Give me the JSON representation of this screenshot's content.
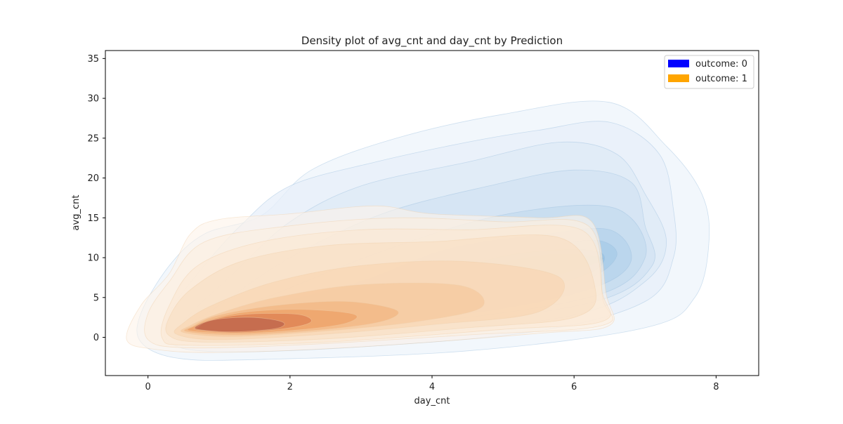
{
  "chart_data": {
    "type": "kde_contour",
    "title": "Density plot of avg_cnt and day_cnt by Prediction",
    "xlabel": "day_cnt",
    "ylabel": "avg_cnt",
    "xlim": [
      -0.6,
      8.6
    ],
    "ylim": [
      -4.8,
      36
    ],
    "xticks": [
      0,
      2,
      4,
      6,
      8
    ],
    "yticks": [
      0,
      5,
      10,
      15,
      20,
      25,
      30,
      35
    ],
    "grid": false,
    "legend_position": "top-right",
    "series": [
      {
        "name": "outcome: 0",
        "color": "#0000ff",
        "cmap": "Blues",
        "levels": [
          {
            "shade": "#eef4fb",
            "points": [
              [
                -0.1,
                -0.6
              ],
              [
                0.4,
                -2.6
              ],
              [
                1.5,
                -2.8
              ],
              [
                4.5,
                -1.7
              ],
              [
                7.0,
                1.2
              ],
              [
                7.7,
                5.0
              ],
              [
                7.9,
                12.0
              ],
              [
                7.8,
                18.0
              ],
              [
                7.3,
                24.0
              ],
              [
                6.5,
                29.5
              ],
              [
                5.0,
                28.0
              ],
              [
                3.5,
                25.0
              ],
              [
                2.3,
                21.0
              ],
              [
                1.6,
                15.3
              ],
              [
                0.8,
                13.0
              ],
              [
                0.3,
                9.0
              ],
              [
                -0.1,
                3.0
              ]
            ]
          },
          {
            "shade": "#e7effa",
            "points": [
              [
                0.3,
                -0.6
              ],
              [
                1.0,
                -1.8
              ],
              [
                3.0,
                -1.2
              ],
              [
                5.5,
                0.8
              ],
              [
                7.0,
                4.5
              ],
              [
                7.4,
                10.0
              ],
              [
                7.4,
                16.0
              ],
              [
                7.2,
                23.0
              ],
              [
                6.5,
                27.0
              ],
              [
                5.5,
                26.0
              ],
              [
                4.5,
                24.5
              ],
              [
                3.2,
                22.0
              ],
              [
                2.0,
                19.0
              ],
              [
                1.3,
                14.0
              ],
              [
                0.7,
                8.0
              ],
              [
                0.3,
                3.0
              ]
            ]
          },
          {
            "shade": "#dde9f6",
            "points": [
              [
                0.4,
                0.2
              ],
              [
                1.2,
                -0.8
              ],
              [
                3.5,
                0.2
              ],
              [
                6.0,
                2.8
              ],
              [
                7.0,
                7.0
              ],
              [
                7.3,
                12.0
              ],
              [
                7.0,
                18.0
              ],
              [
                6.6,
                23.0
              ],
              [
                5.8,
                24.5
              ],
              [
                4.5,
                22.0
              ],
              [
                3.0,
                19.0
              ],
              [
                2.0,
                14.5
              ],
              [
                1.2,
                8.0
              ],
              [
                0.6,
                3.0
              ]
            ]
          },
          {
            "shade": "#d2e3f3",
            "points": [
              [
                0.5,
                0.6
              ],
              [
                1.4,
                0.0
              ],
              [
                4.0,
                1.5
              ],
              [
                6.3,
                4.5
              ],
              [
                7.1,
                9.0
              ],
              [
                7.0,
                14.0
              ],
              [
                6.8,
                19.5
              ],
              [
                6.0,
                21.0
              ],
              [
                4.8,
                19.0
              ],
              [
                3.3,
                15.5
              ],
              [
                2.0,
                10.0
              ],
              [
                1.0,
                4.0
              ]
            ]
          },
          {
            "shade": "#c4dbef",
            "points": [
              [
                0.6,
                1.0
              ],
              [
                2.0,
                0.8
              ],
              [
                4.5,
                2.5
              ],
              [
                6.4,
                5.5
              ],
              [
                7.0,
                10.0
              ],
              [
                6.8,
                15.0
              ],
              [
                6.2,
                16.6
              ],
              [
                4.8,
                15.0
              ],
              [
                3.2,
                10.5
              ],
              [
                1.8,
                5.5
              ],
              [
                0.9,
                2.6
              ]
            ]
          },
          {
            "shade": "#b6d3ec",
            "points": [
              [
                0.7,
                1.2
              ],
              [
                2.2,
                1.4
              ],
              [
                4.5,
                3.0
              ],
              [
                6.2,
                6.0
              ],
              [
                6.8,
                9.5
              ],
              [
                6.5,
                13.5
              ],
              [
                5.5,
                12.8
              ],
              [
                4.2,
                11.0
              ],
              [
                3.0,
                7.0
              ],
              [
                1.7,
                4.0
              ],
              [
                0.9,
                2.4
              ]
            ]
          },
          {
            "shade": "#a7cbe7",
            "points": [
              [
                0.8,
                1.3
              ],
              [
                2.5,
                2.0
              ],
              [
                4.6,
                3.8
              ],
              [
                6.1,
                7.0
              ],
              [
                6.6,
                10.2
              ],
              [
                6.3,
                12.2
              ],
              [
                5.4,
                11.0
              ],
              [
                4.3,
                9.0
              ],
              [
                3.0,
                5.8
              ],
              [
                1.6,
                3.4
              ],
              [
                0.9,
                2.2
              ]
            ]
          },
          {
            "shade": "#97c2e3",
            "points": [
              [
                0.9,
                1.4
              ],
              [
                2.8,
                2.5
              ],
              [
                5.0,
                5.2
              ],
              [
                6.2,
                8.0
              ],
              [
                6.4,
                10.5
              ],
              [
                5.8,
                11.0
              ],
              [
                4.9,
                10.0
              ],
              [
                4.0,
                7.2
              ],
              [
                2.8,
                4.6
              ],
              [
                1.5,
                3.0
              ]
            ]
          },
          {
            "shade": "#86b9de",
            "points": [
              [
                1.0,
                1.4
              ],
              [
                2.5,
                2.6
              ],
              [
                3.8,
                4.0
              ],
              [
                5.0,
                6.0
              ],
              [
                6.0,
                8.5
              ],
              [
                6.4,
                10.0
              ],
              [
                5.6,
                10.3
              ],
              [
                4.7,
                8.6
              ],
              [
                3.5,
                5.6
              ],
              [
                2.2,
                3.8
              ],
              [
                1.3,
                2.4
              ]
            ]
          }
        ]
      },
      {
        "name": "outcome: 1",
        "color": "#ffa500",
        "cmap": "Oranges",
        "levels": [
          {
            "shade": "#fdf4ea",
            "points": [
              [
                -0.3,
                -0.3
              ],
              [
                0.1,
                -1.5
              ],
              [
                1.0,
                -1.9
              ],
              [
                3.0,
                -1.2
              ],
              [
                5.5,
                0.5
              ],
              [
                6.5,
                1.5
              ],
              [
                6.45,
                5.5
              ],
              [
                6.25,
                14.5
              ],
              [
                5.5,
                15.0
              ],
              [
                4.0,
                15.5
              ],
              [
                3.2,
                16.5
              ],
              [
                2.0,
                15.5
              ],
              [
                1.0,
                14.8
              ],
              [
                0.6,
                13.0
              ],
              [
                0.3,
                8.0
              ],
              [
                -0.1,
                4.0
              ]
            ]
          },
          {
            "shade": "#fcefdf",
            "points": [
              [
                0.0,
                -0.3
              ],
              [
                0.5,
                -1.3
              ],
              [
                2.0,
                -1.0
              ],
              [
                4.5,
                0.3
              ],
              [
                6.4,
                1.5
              ],
              [
                6.4,
                5.0
              ],
              [
                6.2,
                14.0
              ],
              [
                5.0,
                14.5
              ],
              [
                3.5,
                15.0
              ],
              [
                2.0,
                14.0
              ],
              [
                0.8,
                12.0
              ],
              [
                0.3,
                7.0
              ],
              [
                0.0,
                3.0
              ]
            ]
          },
          {
            "shade": "#fbe8d2",
            "points": [
              [
                0.2,
                -0.1
              ],
              [
                0.6,
                -1.0
              ],
              [
                2.5,
                -0.6
              ],
              [
                5.0,
                1.0
              ],
              [
                6.4,
                2.0
              ],
              [
                6.4,
                5.5
              ],
              [
                6.1,
                13.5
              ],
              [
                4.5,
                13.5
              ],
              [
                3.0,
                13.5
              ],
              [
                1.6,
                12.0
              ],
              [
                0.7,
                9.0
              ],
              [
                0.3,
                4.0
              ]
            ]
          },
          {
            "shade": "#f9dec1",
            "points": [
              [
                0.3,
                0.2
              ],
              [
                0.8,
                -0.6
              ],
              [
                2.5,
                -0.2
              ],
              [
                4.5,
                1.2
              ],
              [
                6.0,
                2.5
              ],
              [
                6.3,
                6.0
              ],
              [
                5.8,
                12.5
              ],
              [
                4.0,
                12.0
              ],
              [
                2.5,
                11.5
              ],
              [
                1.3,
                9.5
              ],
              [
                0.6,
                6.0
              ],
              [
                0.3,
                2.5
              ]
            ]
          },
          {
            "shade": "#f8d4af",
            "points": [
              [
                0.4,
                0.4
              ],
              [
                1.0,
                -0.3
              ],
              [
                2.5,
                0.4
              ],
              [
                4.0,
                1.6
              ],
              [
                5.5,
                3.2
              ],
              [
                5.8,
                7.5
              ],
              [
                4.5,
                9.5
              ],
              [
                3.0,
                9.0
              ],
              [
                1.8,
                7.0
              ],
              [
                0.9,
                4.0
              ],
              [
                0.5,
                1.8
              ]
            ]
          },
          {
            "shade": "#f5c598",
            "points": [
              [
                0.5,
                0.6
              ],
              [
                1.2,
                0.1
              ],
              [
                2.5,
                0.8
              ],
              [
                3.8,
                2.0
              ],
              [
                4.7,
                3.8
              ],
              [
                4.4,
                6.5
              ],
              [
                3.0,
                6.6
              ],
              [
                1.8,
                5.0
              ],
              [
                1.0,
                3.0
              ],
              [
                0.6,
                1.5
              ]
            ]
          },
          {
            "shade": "#f2b07a",
            "points": [
              [
                0.55,
                0.7
              ],
              [
                1.3,
                0.3
              ],
              [
                2.5,
                1.0
              ],
              [
                3.3,
                2.0
              ],
              [
                3.5,
                3.4
              ],
              [
                2.8,
                4.5
              ],
              [
                1.8,
                4.0
              ],
              [
                1.0,
                2.8
              ],
              [
                0.65,
                1.5
              ]
            ]
          },
          {
            "shade": "#ec9b5f",
            "points": [
              [
                0.6,
                0.8
              ],
              [
                1.3,
                0.5
              ],
              [
                2.2,
                1.0
              ],
              [
                2.8,
                1.8
              ],
              [
                2.9,
                2.9
              ],
              [
                2.2,
                3.5
              ],
              [
                1.4,
                3.2
              ],
              [
                0.9,
                2.3
              ],
              [
                0.65,
                1.4
              ]
            ]
          },
          {
            "shade": "#d9774a",
            "points": [
              [
                0.7,
                0.9
              ],
              [
                1.3,
                0.6
              ],
              [
                2.0,
                1.2
              ],
              [
                2.3,
                2.0
              ],
              [
                2.1,
                2.9
              ],
              [
                1.4,
                2.9
              ],
              [
                0.9,
                2.2
              ],
              [
                0.72,
                1.4
              ]
            ]
          },
          {
            "shade": "#b45a4a",
            "points": [
              [
                0.7,
                1.0
              ],
              [
                1.2,
                0.7
              ],
              [
                1.8,
                1.1
              ],
              [
                1.9,
                1.9
              ],
              [
                1.5,
                2.5
              ],
              [
                1.0,
                2.3
              ],
              [
                0.72,
                1.6
              ]
            ]
          }
        ]
      }
    ]
  }
}
